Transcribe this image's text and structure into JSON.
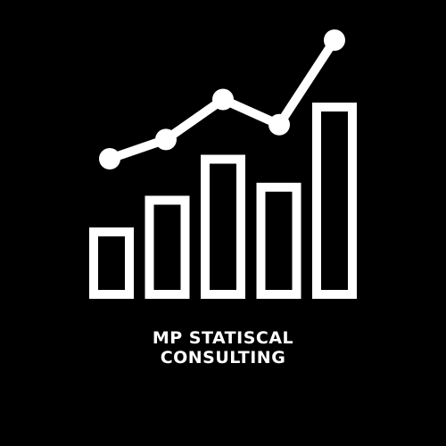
{
  "logo": {
    "name_line_1": "MP STATISCAL",
    "name_line_2": "CONSULTING",
    "foreground_color": "#ffffff",
    "background_color": "#000000",
    "bar_levels": [
      0.33,
      0.5,
      0.72,
      0.57,
      1.0
    ],
    "trend_levels": [
      0.2,
      0.33,
      0.6,
      0.43,
      1.0
    ]
  }
}
